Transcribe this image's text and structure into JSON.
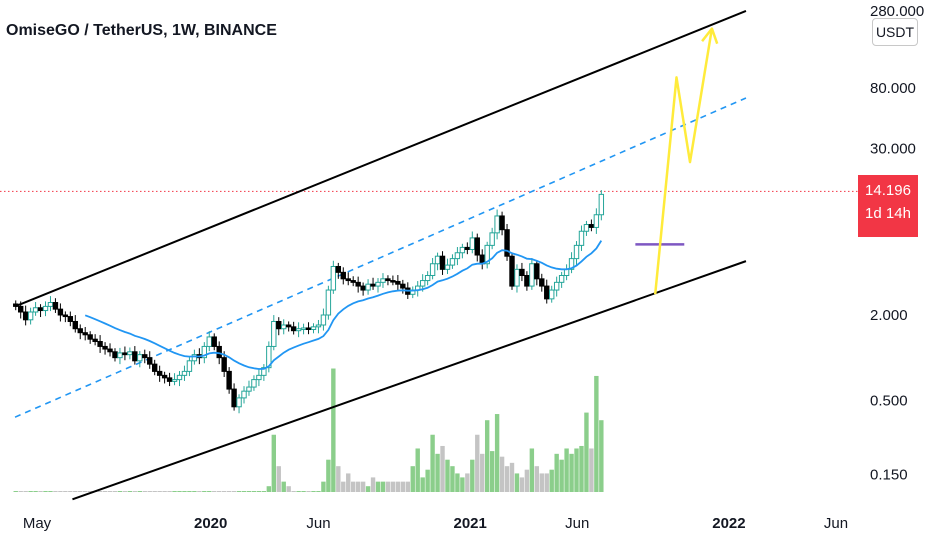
{
  "title": "OmiseGO / TetherUS, 1W, BINANCE",
  "currency": "USDT",
  "price_badge": {
    "price": "14.196",
    "countdown": "1d 14h",
    "color": "#f23645"
  },
  "colors": {
    "up": "#26a69a",
    "candle_up_fill": "#ffffff",
    "candle_down_fill": "#000000",
    "volume_up": "#8bce8b",
    "volume_down": "#c4c4c4",
    "ema": "#2196f3",
    "channel": "#000000",
    "midline": "#2196f3",
    "projection": "#ffeb3b",
    "resistance": "#7e57c2",
    "price_line": "#f23645"
  },
  "chart_data": {
    "type": "candlestick",
    "title": "OmiseGO / TetherUS, 1W, BINANCE",
    "y_scale": "log",
    "ylim": [
      0.1,
      300
    ],
    "y_ticks": [
      {
        "label": "280.000",
        "value": 280
      },
      {
        "label": "80.000",
        "value": 80
      },
      {
        "label": "30.000",
        "value": 30
      },
      {
        "label": "2.000",
        "value": 2
      },
      {
        "label": "0.500",
        "value": 0.5
      },
      {
        "label": "0.150",
        "value": 0.15
      }
    ],
    "x_ticks": [
      {
        "label": "May",
        "date": "2019-05-01",
        "year": false
      },
      {
        "label": "2020",
        "date": "2020-01-01",
        "year": true
      },
      {
        "label": "Jun",
        "date": "2020-06-01",
        "year": false
      },
      {
        "label": "2021",
        "date": "2021-01-01",
        "year": true
      },
      {
        "label": "Jun",
        "date": "2021-06-01",
        "year": false
      },
      {
        "label": "2022",
        "date": "2022-01-01",
        "year": true
      },
      {
        "label": "Jun",
        "date": "2022-06-01",
        "year": false
      }
    ],
    "first_candle_date": "2019-04-01",
    "candle_interval": "1W",
    "closes": [
      2.3,
      2.1,
      1.85,
      2.1,
      2.25,
      2.15,
      2.3,
      2.45,
      2.2,
      2.0,
      1.95,
      1.8,
      1.6,
      1.5,
      1.45,
      1.35,
      1.3,
      1.2,
      1.15,
      1.1,
      1.0,
      1.08,
      1.05,
      1.1,
      0.95,
      1.05,
      1.0,
      0.9,
      0.8,
      0.75,
      0.72,
      0.68,
      0.7,
      0.75,
      0.8,
      0.95,
      1.05,
      1.0,
      1.2,
      1.4,
      1.2,
      1.0,
      0.8,
      0.6,
      0.45,
      0.52,
      0.58,
      0.62,
      0.7,
      0.75,
      0.85,
      1.2,
      1.8,
      1.6,
      1.7,
      1.65,
      1.55,
      1.6,
      1.62,
      1.58,
      1.65,
      1.7,
      2.0,
      3.0,
      4.4,
      4.0,
      3.6,
      3.5,
      3.4,
      3.2,
      3.0,
      3.3,
      3.2,
      3.4,
      3.6,
      3.5,
      3.45,
      3.3,
      3.1,
      2.8,
      3.0,
      3.2,
      3.5,
      3.8,
      4.6,
      5.2,
      4.2,
      4.5,
      5.0,
      5.5,
      6.0,
      5.8,
      7.0,
      5.3,
      4.6,
      6.2,
      7.6,
      10.0,
      8.0,
      5.2,
      3.2,
      4.2,
      3.8,
      3.2,
      4.6,
      3.6,
      3.2,
      2.6,
      3.0,
      3.4,
      3.8,
      4.2,
      5.0,
      6.2,
      7.8,
      8.7,
      8.3,
      10.2,
      14.2
    ],
    "volume": [
      0.09,
      0.09,
      0.09,
      0.09,
      0.09,
      0.09,
      0.09,
      0.09,
      0.09,
      0.09,
      0.09,
      0.09,
      0.09,
      0.09,
      0.09,
      0.09,
      0.09,
      0.09,
      0.09,
      0.09,
      0.09,
      0.09,
      0.09,
      0.09,
      0.09,
      0.09,
      0.09,
      0.09,
      0.09,
      0.09,
      0.09,
      0.09,
      0.09,
      0.09,
      0.09,
      0.09,
      0.09,
      0.09,
      0.09,
      0.09,
      0.09,
      0.09,
      0.09,
      0.09,
      0.1,
      0.1,
      0.1,
      0.1,
      0.1,
      0.11,
      0.11,
      0.13,
      0.3,
      0.18,
      0.14,
      0.13,
      0.12,
      0.12,
      0.12,
      0.12,
      0.12,
      0.12,
      0.14,
      0.2,
      0.88,
      0.18,
      0.14,
      0.16,
      0.14,
      0.14,
      0.14,
      0.13,
      0.15,
      0.14,
      0.14,
      0.14,
      0.14,
      0.14,
      0.14,
      0.14,
      0.18,
      0.24,
      0.15,
      0.17,
      0.3,
      0.22,
      0.25,
      0.2,
      0.18,
      0.16,
      0.15,
      0.16,
      0.2,
      0.3,
      0.22,
      0.38,
      0.23,
      0.42,
      0.21,
      0.18,
      0.19,
      0.16,
      0.15,
      0.17,
      0.24,
      0.18,
      0.16,
      0.16,
      0.17,
      0.22,
      0.2,
      0.24,
      0.22,
      0.24,
      0.25,
      0.43,
      0.24,
      0.78,
      0.38
    ],
    "indicators": {
      "ema_label": "",
      "channel_upper": [
        [
          "2019-03-31",
          2.3
        ],
        [
          "2022-01-25",
          280
        ]
      ],
      "channel_lower": [
        [
          "2019-06-20",
          0.1
        ],
        [
          "2022-01-25",
          4.8
        ]
      ],
      "channel_mid": [
        [
          "2019-03-31",
          0.38
        ],
        [
          "2022-01-25",
          68
        ]
      ],
      "resistance": {
        "value": 6.3,
        "from": "2021-08-22",
        "to": "2021-10-30"
      },
      "projection_path": [
        [
          "2021-09-19",
          2.8
        ],
        [
          "2021-10-19",
          95
        ],
        [
          "2021-11-07",
          24
        ],
        [
          "2021-12-08",
          210
        ]
      ]
    }
  }
}
